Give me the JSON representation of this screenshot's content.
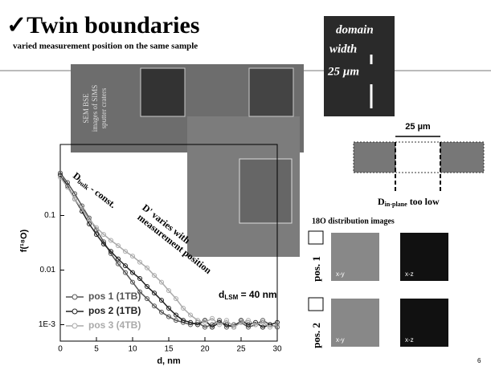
{
  "header": {
    "title": "✓Twin boundaries",
    "subtitle": "varied measurement position on the same sample"
  },
  "sem": {
    "label": [
      "SEM BSE",
      "images of SIMS",
      "sputter craters"
    ]
  },
  "inset": {
    "lines": [
      "domain",
      "width",
      "25 µm"
    ]
  },
  "diagram": {
    "width": "25 µm",
    "d_main": "D",
    "d_sub": "in-plane",
    "d_after": " too low"
  },
  "distribution": {
    "title": "18O distribution images",
    "rows": [
      {
        "label": "pos. 1",
        "views": [
          "x-y",
          "x-z"
        ]
      },
      {
        "label": "pos. 2",
        "views": [
          "x-y",
          "x-z"
        ]
      }
    ]
  },
  "page_number": "6",
  "chart_data": {
    "type": "line",
    "xlabel": "d, nm",
    "ylabel": "f(¹⁸O)",
    "log_y": true,
    "annotations": {
      "bulk": {
        "main": "D",
        "sub": "bulk",
        "after": " - const."
      },
      "varies": [
        "D' varies with",
        "measurement position"
      ],
      "lsm": {
        "main": "d",
        "sub": "LSM",
        "after": " = 40 nm"
      }
    },
    "x": [
      0,
      1,
      2,
      3,
      4,
      5,
      6,
      7,
      8,
      9,
      10,
      11,
      12,
      13,
      14,
      15,
      16,
      17,
      18,
      19,
      20,
      21,
      22,
      23,
      24,
      25,
      26,
      27,
      28,
      29,
      30
    ],
    "xlim": [
      0,
      30
    ],
    "xticks": [
      0,
      5,
      10,
      15,
      20,
      25,
      30
    ],
    "ylim": [
      0.0005,
      2
    ],
    "yticks": [
      {
        "value": 0.001,
        "label": "1E-3"
      },
      0.01,
      0.1
    ],
    "series": [
      {
        "name": "pos 1 (1TB)",
        "color": "#555555",
        "values": [
          0.6,
          0.4,
          0.25,
          0.15,
          0.09,
          0.055,
          0.033,
          0.02,
          0.013,
          0.009,
          0.006,
          0.004,
          0.003,
          0.0022,
          0.0017,
          0.0014,
          0.0012,
          0.0011,
          0.001,
          0.0011,
          0.0009,
          0.001,
          0.0012,
          0.0009,
          0.001,
          0.0011,
          0.0009,
          0.001,
          0.0012,
          0.001,
          0.0009
        ]
      },
      {
        "name": "pos 2 (1TB)",
        "color": "#222222",
        "values": [
          0.55,
          0.35,
          0.2,
          0.12,
          0.07,
          0.045,
          0.03,
          0.022,
          0.016,
          0.012,
          0.009,
          0.007,
          0.005,
          0.0038,
          0.0028,
          0.002,
          0.0015,
          0.0012,
          0.0011,
          0.001,
          0.0012,
          0.0009,
          0.0011,
          0.001,
          0.0009,
          0.0012,
          0.001,
          0.0011,
          0.0009,
          0.001,
          0.0011
        ]
      },
      {
        "name": "pos 3 (4TB)",
        "color": "#aaaaaa",
        "values": [
          0.5,
          0.33,
          0.2,
          0.13,
          0.085,
          0.06,
          0.045,
          0.035,
          0.028,
          0.022,
          0.018,
          0.014,
          0.011,
          0.008,
          0.006,
          0.0042,
          0.003,
          0.002,
          0.0015,
          0.0012,
          0.0011,
          0.0013,
          0.001,
          0.0012,
          0.0009,
          0.0011,
          0.0012,
          0.001,
          0.0011,
          0.0009,
          0.001
        ]
      }
    ]
  }
}
